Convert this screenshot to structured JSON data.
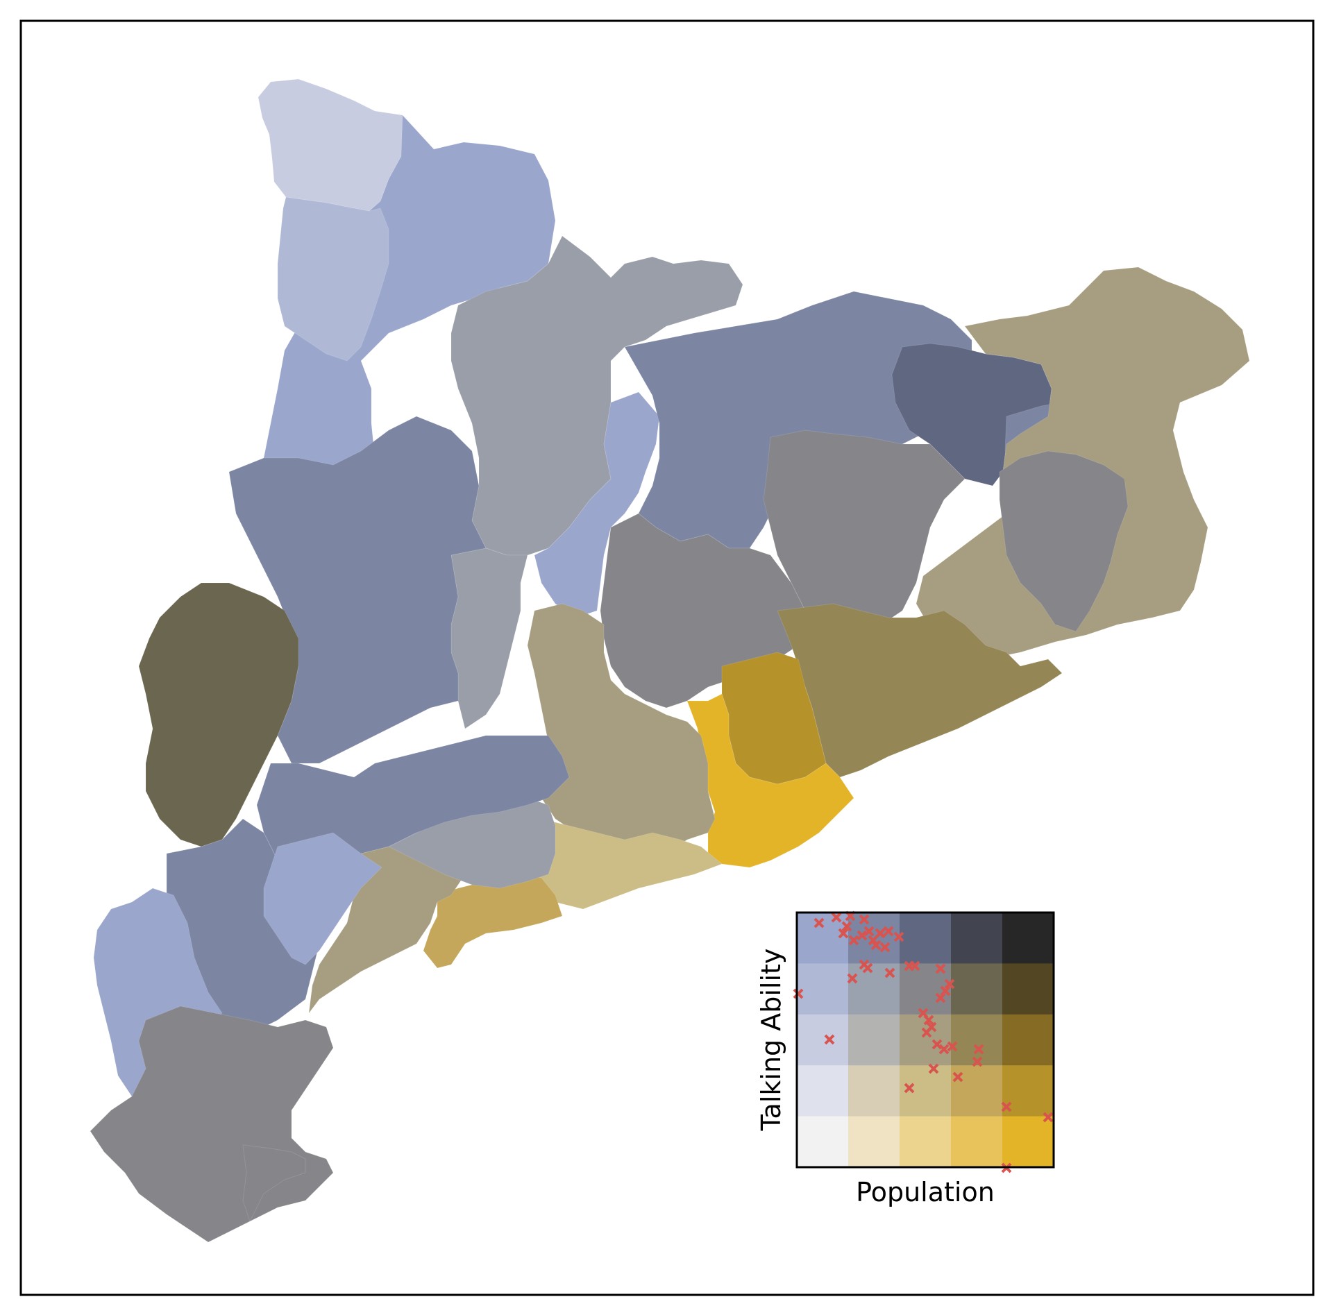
{
  "legend": {
    "xlabel": "Population",
    "ylabel": "Talking Ability",
    "grid_colors": [
      [
        "#9aa6cc",
        "#7c86a3",
        "#606780",
        "#42454f",
        "#272727"
      ],
      [
        "#afb9d6",
        "#9aa1af",
        "#86868a",
        "#6b664f",
        "#534623"
      ],
      [
        "#c8cce0",
        "#b3b3b2",
        "#a79e81",
        "#958655",
        "#856b24"
      ],
      [
        "#dfe2ec",
        "#d8ceb5",
        "#ccbd86",
        "#c4a75a",
        "#b6922a"
      ],
      [
        "#f2f2f2",
        "#f0e3c3",
        "#edd48e",
        "#e8c35b",
        "#e4b428"
      ]
    ],
    "marker_color": "#d9534f",
    "marker_icon": "x-marker"
  },
  "map_colors": {
    "pale_blue": "#c8cce0",
    "light_blue": "#afb9d6",
    "blue": "#9aa6cc",
    "slate": "#7c86a3",
    "dark_slate": "#606780",
    "grey_blue": "#9a9ea9",
    "grey": "#86868a",
    "dark_olive": "#6b664f",
    "tan": "#a79e81",
    "olive": "#958655",
    "mustard": "#b6922a",
    "light_tan": "#ccbd86",
    "gold": "#c4a75a",
    "yellow": "#e4b428"
  }
}
